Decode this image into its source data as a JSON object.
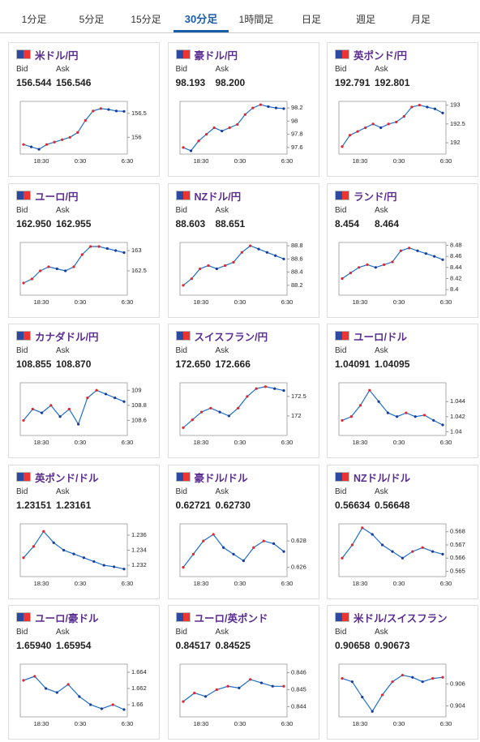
{
  "tabs": [
    {
      "label": "1分足"
    },
    {
      "label": "5分足"
    },
    {
      "label": "15分足"
    },
    {
      "label": "30分足",
      "active": true
    },
    {
      "label": "1時間足"
    },
    {
      "label": "日足"
    },
    {
      "label": "週足"
    },
    {
      "label": "月足"
    }
  ],
  "labels": {
    "bid": "Bid",
    "ask": "Ask"
  },
  "time_labels": [
    "18:30",
    "0:30",
    "6:30"
  ],
  "cards": [
    {
      "title": "米ドル/円",
      "bid": "156.544",
      "ask": "156.546",
      "chart": {
        "type": "line",
        "ylim": [
          155.65,
          156.75
        ],
        "yticks": [
          156,
          156.5
        ],
        "values": [
          155.85,
          155.8,
          155.75,
          155.85,
          155.9,
          155.95,
          156.0,
          156.1,
          156.35,
          156.55,
          156.6,
          156.58,
          156.55,
          156.54
        ]
      }
    },
    {
      "title": "豪ドル/円",
      "bid": "98.193",
      "ask": "98.200",
      "chart": {
        "type": "line",
        "ylim": [
          97.5,
          98.3
        ],
        "yticks": [
          97.6,
          97.8,
          98,
          98.2
        ],
        "values": [
          97.6,
          97.55,
          97.7,
          97.8,
          97.9,
          97.85,
          97.9,
          97.95,
          98.1,
          98.2,
          98.25,
          98.22,
          98.2,
          98.19
        ]
      }
    },
    {
      "title": "英ポンド/円",
      "bid": "192.791",
      "ask": "192.801",
      "chart": {
        "type": "line",
        "ylim": [
          191.7,
          193.1
        ],
        "yticks": [
          192,
          192.5,
          193
        ],
        "values": [
          191.9,
          192.2,
          192.3,
          192.4,
          192.5,
          192.4,
          192.5,
          192.55,
          192.7,
          192.95,
          193.0,
          192.95,
          192.9,
          192.79
        ]
      }
    },
    {
      "title": "ユーロ/円",
      "bid": "162.950",
      "ask": "162.955",
      "chart": {
        "type": "line",
        "ylim": [
          161.9,
          163.2
        ],
        "yticks": [
          162.5,
          163
        ],
        "values": [
          162.2,
          162.3,
          162.5,
          162.6,
          162.55,
          162.5,
          162.6,
          162.9,
          163.1,
          163.1,
          163.05,
          163.0,
          162.95
        ]
      }
    },
    {
      "title": "NZドル/円",
      "bid": "88.603",
      "ask": "88.651",
      "chart": {
        "type": "line",
        "ylim": [
          88.05,
          88.85
        ],
        "yticks": [
          88.2,
          88.4,
          88.6,
          88.8
        ],
        "values": [
          88.2,
          88.3,
          88.45,
          88.5,
          88.45,
          88.5,
          88.55,
          88.7,
          88.8,
          88.75,
          88.7,
          88.65,
          88.6
        ]
      }
    },
    {
      "title": "ランド/円",
      "bid": "8.454",
      "ask": "8.464",
      "chart": {
        "type": "line",
        "ylim": [
          8.39,
          8.485
        ],
        "yticks": [
          8.4,
          8.42,
          8.44,
          8.46,
          8.48
        ],
        "values": [
          8.42,
          8.43,
          8.44,
          8.445,
          8.44,
          8.445,
          8.45,
          8.47,
          8.475,
          8.47,
          8.465,
          8.46,
          8.454
        ]
      }
    },
    {
      "title": "カナダドル/円",
      "bid": "108.855",
      "ask": "108.870",
      "chart": {
        "type": "line",
        "ylim": [
          108.4,
          109.1
        ],
        "yticks": [
          108.6,
          108.8,
          109
        ],
        "values": [
          108.6,
          108.75,
          108.7,
          108.8,
          108.65,
          108.75,
          108.55,
          108.9,
          109.0,
          108.95,
          108.9,
          108.85
        ]
      }
    },
    {
      "title": "スイスフラン/円",
      "bid": "172.650",
      "ask": "172.666",
      "chart": {
        "type": "line",
        "ylim": [
          171.5,
          172.85
        ],
        "yticks": [
          172,
          172.5
        ],
        "values": [
          171.7,
          171.9,
          172.1,
          172.2,
          172.1,
          172.0,
          172.2,
          172.5,
          172.7,
          172.75,
          172.7,
          172.65
        ]
      }
    },
    {
      "title": "ユーロ/ドル",
      "bid": "1.04091",
      "ask": "1.04095",
      "chart": {
        "type": "line",
        "ylim": [
          1.0395,
          1.0465
        ],
        "yticks": [
          1.04,
          1.042,
          1.044
        ],
        "values": [
          1.0415,
          1.042,
          1.0435,
          1.0455,
          1.044,
          1.0425,
          1.042,
          1.0425,
          1.042,
          1.0422,
          1.0415,
          1.0409
        ]
      }
    },
    {
      "title": "英ポンド/ドル",
      "bid": "1.23151",
      "ask": "1.23161",
      "chart": {
        "type": "line",
        "ylim": [
          1.2305,
          1.2375
        ],
        "yticks": [
          1.232,
          1.234,
          1.236
        ],
        "values": [
          1.233,
          1.2345,
          1.2365,
          1.235,
          1.234,
          1.2335,
          1.233,
          1.2325,
          1.232,
          1.2318,
          1.2315
        ]
      }
    },
    {
      "title": "豪ドル/ドル",
      "bid": "0.62721",
      "ask": "0.62730",
      "chart": {
        "type": "line",
        "ylim": [
          0.6253,
          0.6293
        ],
        "yticks": [
          0.626,
          0.628
        ],
        "values": [
          0.626,
          0.627,
          0.628,
          0.6285,
          0.6275,
          0.627,
          0.6265,
          0.6275,
          0.628,
          0.6278,
          0.6272
        ]
      }
    },
    {
      "title": "NZドル/ドル",
      "bid": "0.56634",
      "ask": "0.56648",
      "chart": {
        "type": "line",
        "ylim": [
          0.5646,
          0.5686
        ],
        "yticks": [
          0.565,
          0.566,
          0.567,
          0.568
        ],
        "values": [
          0.566,
          0.567,
          0.5683,
          0.5678,
          0.567,
          0.5665,
          0.566,
          0.5665,
          0.5668,
          0.5665,
          0.5663
        ]
      }
    },
    {
      "title": "ユーロ/豪ドル",
      "bid": "1.65940",
      "ask": "1.65954",
      "chart": {
        "type": "line",
        "ylim": [
          1.6585,
          1.665
        ],
        "yticks": [
          1.66,
          1.662,
          1.664
        ],
        "values": [
          1.663,
          1.6635,
          1.662,
          1.6615,
          1.6625,
          1.661,
          1.66,
          1.6595,
          1.66,
          1.6594
        ]
      }
    },
    {
      "title": "ユーロ/英ポンド",
      "bid": "0.84517",
      "ask": "0.84525",
      "chart": {
        "type": "line",
        "ylim": [
          0.8434,
          0.8465
        ],
        "yticks": [
          0.844,
          0.845,
          0.846
        ],
        "values": [
          0.8443,
          0.8448,
          0.8446,
          0.845,
          0.8452,
          0.8451,
          0.8456,
          0.8454,
          0.8452,
          0.8452
        ]
      }
    },
    {
      "title": "米ドル/スイスフラン",
      "bid": "0.90658",
      "ask": "0.90673",
      "chart": {
        "type": "line",
        "ylim": [
          0.903,
          0.9078
        ],
        "yticks": [
          0.904,
          0.906
        ],
        "values": [
          0.9065,
          0.9062,
          0.9048,
          0.9035,
          0.905,
          0.9062,
          0.9068,
          0.9066,
          0.9062,
          0.9065,
          0.9066
        ]
      }
    }
  ]
}
